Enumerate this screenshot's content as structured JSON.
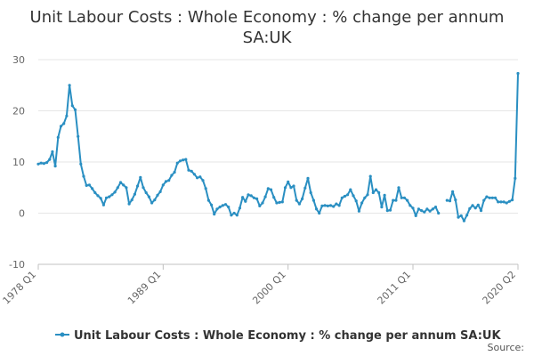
{
  "chart_data": {
    "type": "line",
    "title_lines": [
      "Unit Labour Costs : Whole Economy : % change per annum",
      "SA:UK"
    ],
    "xlabel": "",
    "ylabel": "",
    "ylim": [
      -10,
      30
    ],
    "yticks": [
      30,
      20,
      10,
      0,
      -10
    ],
    "x_range": [
      "1978 Q1",
      "2020 Q2"
    ],
    "xticks": [
      {
        "label": "1978 Q1",
        "t": 1978.0
      },
      {
        "label": "1989 Q1",
        "t": 1989.0
      },
      {
        "label": "2000 Q1",
        "t": 2000.0
      },
      {
        "label": "2011 Q1",
        "t": 2011.0
      },
      {
        "label": "2020 Q2",
        "t": 2020.25
      }
    ],
    "grid": true,
    "legend_position": "bottom",
    "series": [
      {
        "name": "Unit Labour Costs : Whole Economy : % change per annum SA:UK",
        "color": "#2a8fc2",
        "points": [
          [
            1978.0,
            9.6
          ],
          [
            1978.25,
            9.8
          ],
          [
            1978.5,
            9.7
          ],
          [
            1978.75,
            9.9
          ],
          [
            1979.0,
            10.5
          ],
          [
            1979.25,
            12.0
          ],
          [
            1979.5,
            9.2
          ],
          [
            1979.75,
            14.8
          ],
          [
            1980.0,
            17.0
          ],
          [
            1980.25,
            17.5
          ],
          [
            1980.5,
            19.0
          ],
          [
            1980.75,
            25.0
          ],
          [
            1981.0,
            21.0
          ],
          [
            1981.25,
            20.2
          ],
          [
            1981.5,
            15.0
          ],
          [
            1981.75,
            9.6
          ],
          [
            1982.0,
            7.2
          ],
          [
            1982.25,
            5.4
          ],
          [
            1982.5,
            5.5
          ],
          [
            1982.75,
            4.8
          ],
          [
            1983.0,
            4.0
          ],
          [
            1983.25,
            3.4
          ],
          [
            1983.5,
            2.9
          ],
          [
            1983.75,
            1.6
          ],
          [
            1984.0,
            3.0
          ],
          [
            1984.25,
            3.2
          ],
          [
            1984.5,
            3.6
          ],
          [
            1984.75,
            4.1
          ],
          [
            1985.0,
            5.0
          ],
          [
            1985.25,
            6.0
          ],
          [
            1985.5,
            5.5
          ],
          [
            1985.75,
            5.0
          ],
          [
            1986.0,
            1.8
          ],
          [
            1986.25,
            2.6
          ],
          [
            1986.5,
            3.7
          ],
          [
            1986.75,
            5.3
          ],
          [
            1987.0,
            7.0
          ],
          [
            1987.25,
            5.0
          ],
          [
            1987.5,
            4.0
          ],
          [
            1987.75,
            3.2
          ],
          [
            1988.0,
            2.0
          ],
          [
            1988.25,
            2.6
          ],
          [
            1988.5,
            3.5
          ],
          [
            1988.75,
            4.2
          ],
          [
            1989.0,
            5.5
          ],
          [
            1989.25,
            6.2
          ],
          [
            1989.5,
            6.4
          ],
          [
            1989.75,
            7.4
          ],
          [
            1990.0,
            8.0
          ],
          [
            1990.25,
            9.8
          ],
          [
            1990.5,
            10.2
          ],
          [
            1990.75,
            10.4
          ],
          [
            1991.0,
            10.5
          ],
          [
            1991.25,
            8.4
          ],
          [
            1991.5,
            8.2
          ],
          [
            1991.75,
            7.6
          ],
          [
            1992.0,
            6.9
          ],
          [
            1992.25,
            7.1
          ],
          [
            1992.5,
            6.4
          ],
          [
            1992.75,
            4.8
          ],
          [
            1993.0,
            2.5
          ],
          [
            1993.25,
            1.6
          ],
          [
            1993.5,
            -0.2
          ],
          [
            1993.75,
            0.8
          ],
          [
            1994.0,
            1.2
          ],
          [
            1994.25,
            1.5
          ],
          [
            1994.5,
            1.7
          ],
          [
            1994.75,
            1.2
          ],
          [
            1995.0,
            -0.4
          ],
          [
            1995.25,
            0.0
          ],
          [
            1995.5,
            -0.4
          ],
          [
            1995.75,
            1.0
          ],
          [
            1996.0,
            3.1
          ],
          [
            1996.25,
            2.3
          ],
          [
            1996.5,
            3.6
          ],
          [
            1996.75,
            3.4
          ],
          [
            1997.0,
            3.0
          ],
          [
            1997.25,
            2.8
          ],
          [
            1997.5,
            1.4
          ],
          [
            1997.75,
            2.0
          ],
          [
            1998.0,
            3.2
          ],
          [
            1998.25,
            4.8
          ],
          [
            1998.5,
            4.6
          ],
          [
            1998.75,
            3.1
          ],
          [
            1999.0,
            2.0
          ],
          [
            1999.25,
            2.1
          ],
          [
            1999.5,
            2.2
          ],
          [
            1999.75,
            5.0
          ],
          [
            2000.0,
            6.1
          ],
          [
            2000.25,
            5.0
          ],
          [
            2000.5,
            5.3
          ],
          [
            2000.75,
            2.5
          ],
          [
            2001.0,
            1.8
          ],
          [
            2001.25,
            2.8
          ],
          [
            2001.5,
            4.9
          ],
          [
            2001.75,
            6.8
          ],
          [
            2002.0,
            4.0
          ],
          [
            2002.25,
            2.5
          ],
          [
            2002.5,
            0.8
          ],
          [
            2002.75,
            0.0
          ],
          [
            2003.0,
            1.4
          ],
          [
            2003.25,
            1.5
          ],
          [
            2003.5,
            1.4
          ],
          [
            2003.75,
            1.5
          ],
          [
            2004.0,
            1.3
          ],
          [
            2004.25,
            1.8
          ],
          [
            2004.5,
            1.5
          ],
          [
            2004.75,
            3.0
          ],
          [
            2005.0,
            3.3
          ],
          [
            2005.25,
            3.6
          ],
          [
            2005.5,
            4.6
          ],
          [
            2005.75,
            3.4
          ],
          [
            2006.0,
            2.4
          ],
          [
            2006.25,
            0.4
          ],
          [
            2006.5,
            2.0
          ],
          [
            2006.75,
            3.0
          ],
          [
            2007.0,
            3.6
          ],
          [
            2007.25,
            7.2
          ],
          [
            2007.5,
            4.0
          ],
          [
            2007.75,
            4.6
          ],
          [
            2008.0,
            4.0
          ],
          [
            2008.25,
            1.2
          ],
          [
            2008.5,
            3.5
          ],
          [
            2008.75,
            0.5
          ],
          [
            2009.0,
            0.6
          ],
          [
            2009.25,
            2.5
          ],
          [
            2009.5,
            2.5
          ],
          [
            2009.75,
            5.0
          ],
          [
            2010.0,
            3.0
          ],
          [
            2010.25,
            3.0
          ],
          [
            2010.5,
            2.5
          ],
          [
            2010.75,
            1.5
          ],
          [
            2011.0,
            1.0
          ],
          [
            2011.25,
            -0.5
          ],
          [
            2011.5,
            0.8
          ],
          [
            2011.75,
            0.5
          ],
          [
            2012.0,
            0.2
          ],
          [
            2012.25,
            0.8
          ],
          [
            2012.5,
            0.4
          ],
          [
            2012.75,
            0.8
          ],
          [
            2013.0,
            1.2
          ],
          [
            2013.25,
            0.0
          ],
          null,
          [
            2014.0,
            2.5
          ],
          [
            2014.25,
            2.4
          ],
          [
            2014.5,
            4.2
          ],
          [
            2014.75,
            2.6
          ],
          [
            2015.0,
            -0.8
          ],
          [
            2015.25,
            -0.5
          ],
          [
            2015.5,
            -1.5
          ],
          [
            2015.75,
            -0.4
          ],
          [
            2016.0,
            0.9
          ],
          [
            2016.25,
            1.5
          ],
          [
            2016.5,
            1.0
          ],
          [
            2016.75,
            1.6
          ],
          [
            2017.0,
            0.5
          ],
          [
            2017.25,
            2.5
          ],
          [
            2017.5,
            3.2
          ],
          [
            2017.75,
            3.0
          ],
          [
            2018.0,
            3.0
          ],
          [
            2018.25,
            3.0
          ],
          [
            2018.5,
            2.2
          ],
          [
            2018.75,
            2.2
          ],
          [
            2019.0,
            2.2
          ],
          [
            2019.25,
            2.0
          ],
          [
            2019.5,
            2.3
          ],
          [
            2019.75,
            2.6
          ],
          [
            2020.0,
            6.8
          ],
          [
            2020.25,
            27.3
          ]
        ]
      }
    ]
  },
  "legend": {
    "label": "Unit Labour Costs : Whole Economy : % change per annum SA:UK"
  },
  "footer": {
    "source_label": "Source:"
  }
}
